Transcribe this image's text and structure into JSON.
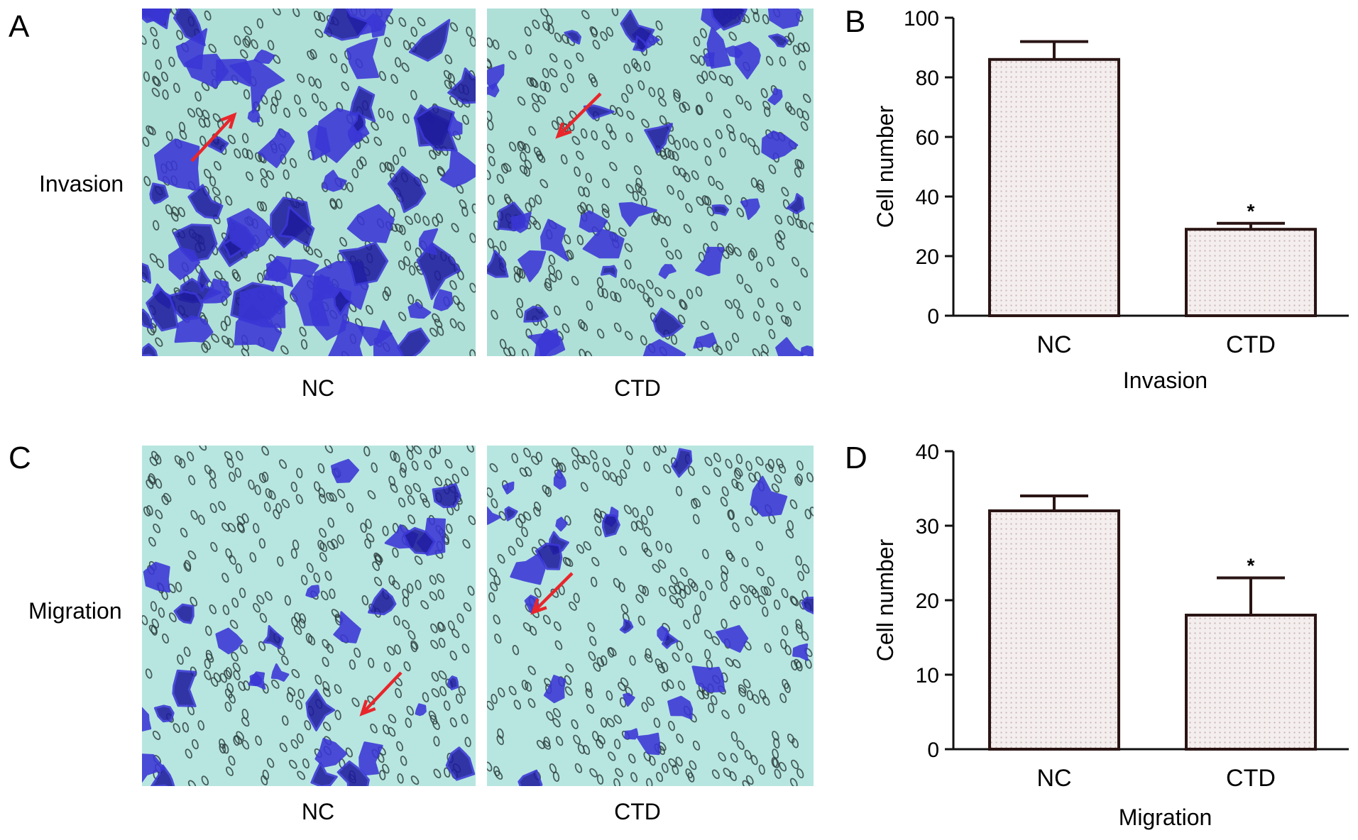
{
  "figure": {
    "panels": {
      "A": {
        "letter": "A",
        "row_label": "Invasion",
        "captions": [
          "NC",
          "CTD"
        ]
      },
      "C": {
        "letter": "C",
        "row_label": "Migration",
        "captions": [
          "NC",
          "CTD"
        ]
      },
      "B": {
        "letter": "B"
      },
      "D": {
        "letter": "D"
      }
    }
  },
  "colors": {
    "micro_bg": "#aee0d8",
    "micro_bg_alt": "#b7e6e0",
    "cell": "#3a36d6",
    "cell_dark": "#1f1c9e",
    "pore": "#2a3b3b",
    "arrow": "#e8262b",
    "bar_fill": "#f4eeee",
    "bar_dot": "#c9b5b5",
    "bar_edge": "#2a1414"
  },
  "chart_data": [
    {
      "id": "B",
      "type": "bar",
      "categories": [
        "NC",
        "CTD"
      ],
      "values": [
        86,
        29
      ],
      "errors": [
        6,
        2
      ],
      "significance": [
        "",
        "*"
      ],
      "ylabel": "Cell number",
      "xlabel": "Invasion",
      "ylim": [
        0,
        100
      ],
      "yticks": [
        0,
        20,
        40,
        60,
        80,
        100
      ]
    },
    {
      "id": "D",
      "type": "bar",
      "categories": [
        "NC",
        "CTD"
      ],
      "values": [
        32,
        18
      ],
      "errors": [
        2,
        5
      ],
      "significance": [
        "",
        "*"
      ],
      "ylabel": "Cell number",
      "xlabel": "Migration",
      "ylim": [
        0,
        40
      ],
      "yticks": [
        0,
        10,
        20,
        30,
        40
      ]
    }
  ]
}
